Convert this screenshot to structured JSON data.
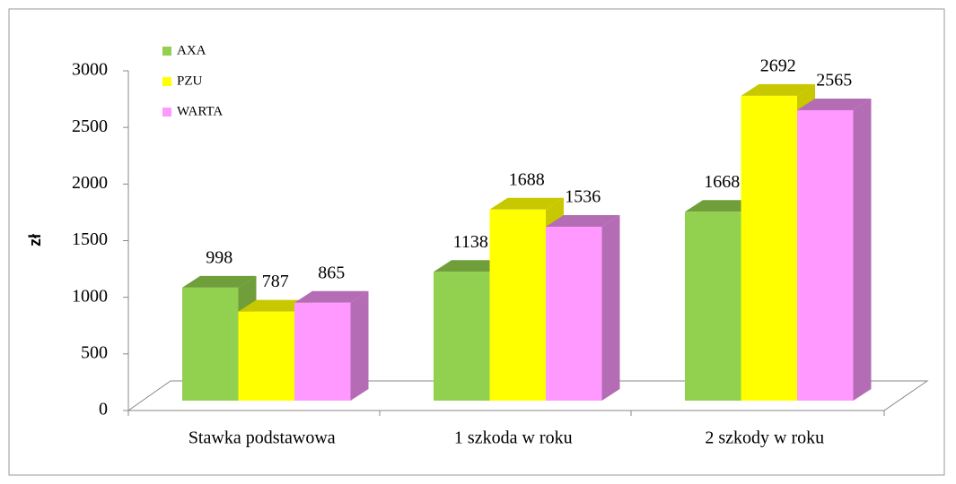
{
  "chart_data": {
    "type": "bar3d",
    "y_label": "zł",
    "categories": [
      "Stawka podstawowa",
      "1 szkoda w roku",
      "2 szkody w roku"
    ],
    "series": [
      {
        "name": "AXA",
        "color": "#92d050",
        "side": "#6f9e3a",
        "values": [
          998,
          1138,
          1668
        ]
      },
      {
        "name": "PZU",
        "color": "#ffff00",
        "side": "#c8c800",
        "values": [
          787,
          1688,
          2692
        ]
      },
      {
        "name": "WARTA",
        "color": "#ff99ff",
        "side": "#b46cb4",
        "values": [
          865,
          1536,
          2565
        ]
      }
    ],
    "ylim": [
      0,
      3000
    ],
    "yticks": [
      0,
      500,
      1000,
      1500,
      2000,
      2500,
      3000
    ],
    "legend": "upper left"
  }
}
